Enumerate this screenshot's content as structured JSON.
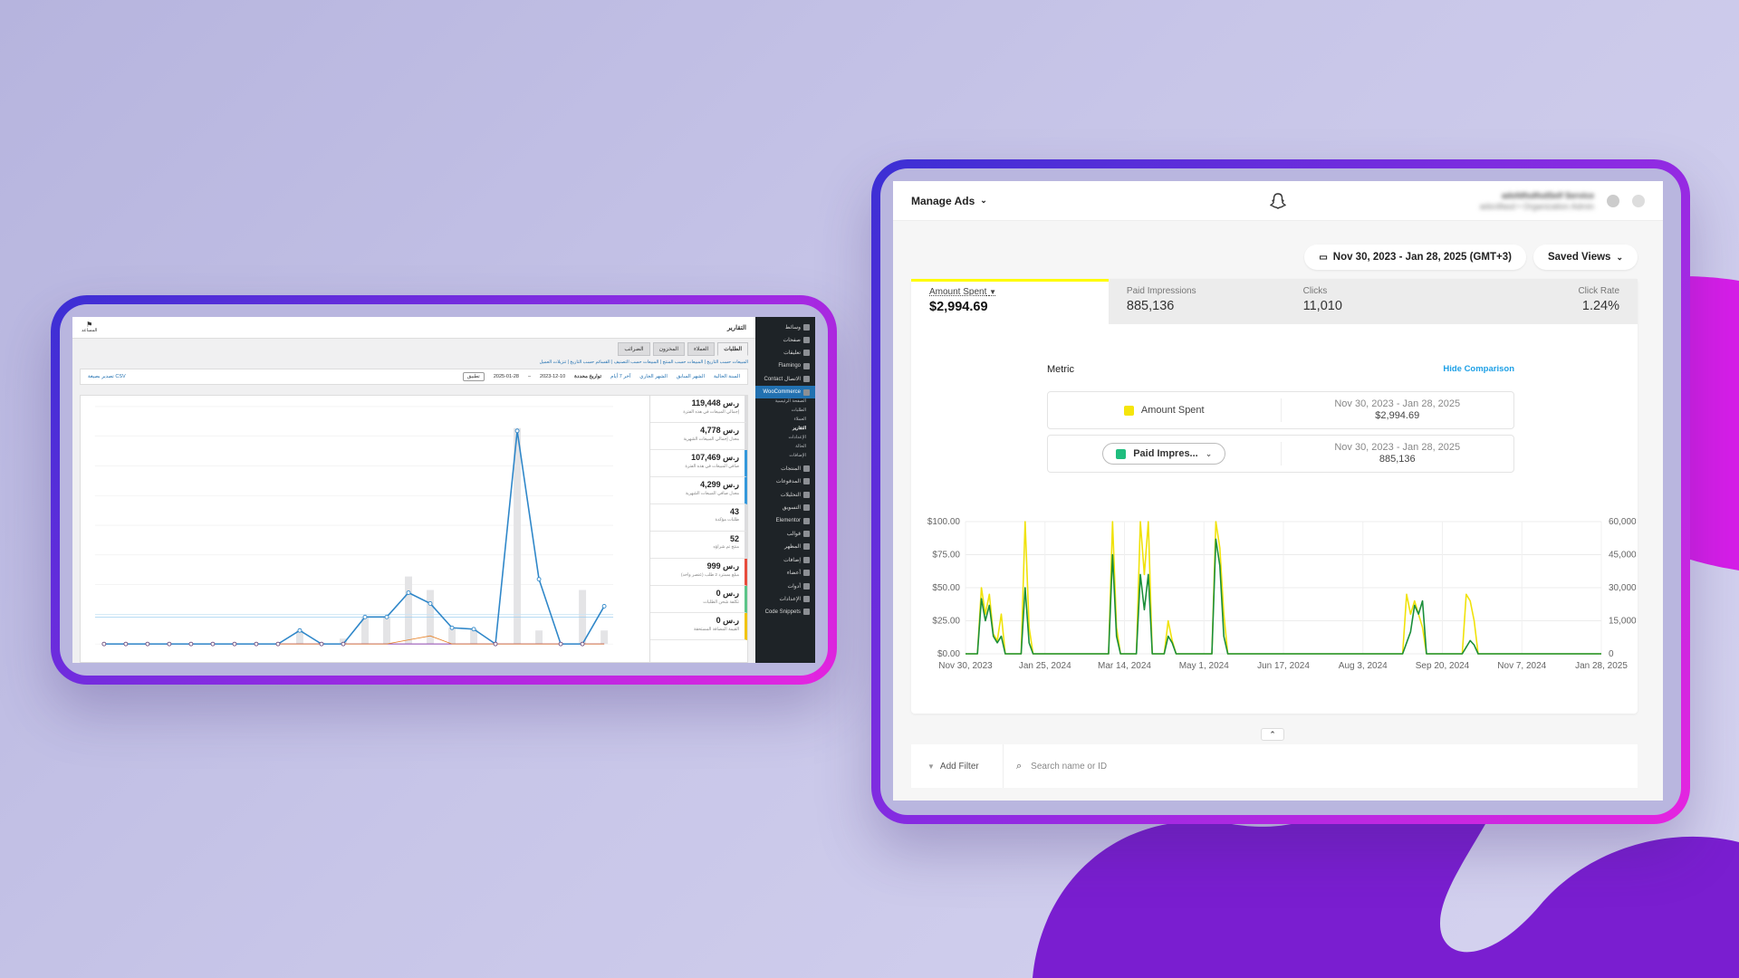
{
  "woocommerce": {
    "header": {
      "title": "التقارير",
      "logo_text": "المساعد"
    },
    "tabs": [
      "الطلبات",
      "العملاء",
      "المخزون",
      "الضرائب"
    ],
    "subnav": "المبيعات حسب التاريخ | المبيعات حسب المنتج | المبيعات حسب التصنيف | القسائم حسب التاريخ | تنزيلات العميل",
    "ranges": [
      "السنة الحالية",
      "الشهر السابق",
      "الشهر الجاري",
      "آخر 7 أيام",
      "تواريخ محددة"
    ],
    "date_from": "2023-12-10",
    "date_to": "2025-01-28",
    "apply": "تطبيق",
    "export_csv": "تصدير بصيغة CSV",
    "sidebar": [
      {
        "label": "وسائط"
      },
      {
        "label": "صفحات"
      },
      {
        "label": "تعليقات"
      },
      {
        "label": "Flamingo"
      },
      {
        "label": "Contact الاتصال"
      },
      {
        "label": "WooCommerce",
        "active": true
      }
    ],
    "sidebar_sub": [
      "الصفحة الرئيسية",
      "الطلبات",
      "العملاء",
      "التقارير",
      "الإعدادات",
      "الحالة",
      "الإضافات"
    ],
    "sidebar_more": [
      {
        "label": "المنتجات"
      },
      {
        "label": "المدفوعات"
      },
      {
        "label": "التحليلات"
      },
      {
        "label": "التسويق"
      },
      {
        "label": "Elementor"
      },
      {
        "label": "قوالب"
      },
      {
        "label": "المظهر"
      },
      {
        "label": "إضافات"
      },
      {
        "label": "أعضاء"
      },
      {
        "label": "أدوات"
      },
      {
        "label": "الإعدادات"
      },
      {
        "label": "Code Snippets"
      }
    ],
    "stats": [
      {
        "value": "119,448 ر.س",
        "label": "إجمالي المبيعات في هذه الفترة",
        "color": "#dcdcde"
      },
      {
        "value": "4,778 ر.س",
        "label": "معدل إجمالي المبيعات الشهرية",
        "color": "#dcdcde"
      },
      {
        "value": "107,469 ر.س",
        "label": "صافي المبيعات في هذه الفترة",
        "color": "#3498db"
      },
      {
        "value": "4,299 ر.س",
        "label": "معدل صافي المبيعات الشهرية",
        "color": "#3498db"
      },
      {
        "value": "43",
        "label": "طلبات مؤكدة",
        "color": "#dcdcde"
      },
      {
        "value": "52",
        "label": "منتج تم شراؤه",
        "color": "#dcdcde"
      },
      {
        "value": "999 ر.س",
        "label": "مبلغ مسترد 2 طلب (عنصر واحد)",
        "color": "#e74c3c"
      },
      {
        "value": "0 ر.س",
        "label": "تكلفة شحن الطلبات",
        "color": "#5cc488"
      },
      {
        "value": "0 ر.س",
        "label": "القيمة المضافة المستحقة",
        "color": "#f1c40f"
      }
    ],
    "chart_data": {
      "type": "line",
      "title": "",
      "series": [
        {
          "values": [
            0,
            0,
            0,
            0,
            0,
            0,
            0,
            0,
            0,
            1,
            0,
            0,
            0,
            0,
            2,
            2,
            0,
            2,
            1,
            0,
            0,
            4,
            0,
            0,
            0,
            1,
            0,
            0,
            0,
            0,
            2,
            0,
            0,
            5,
            0,
            0,
            1,
            0,
            0,
            0,
            1,
            0,
            0,
            1,
            0,
            0,
            0,
            0,
            1,
            0
          ]
        },
        {
          "values": [
            0,
            0,
            0,
            0,
            0,
            0,
            0,
            0,
            0,
            0,
            0,
            0,
            0,
            0,
            0,
            0,
            0,
            0,
            0,
            0,
            0,
            0,
            0,
            0,
            0,
            0,
            0,
            0,
            0,
            0,
            0,
            0,
            0,
            0,
            0,
            0,
            0,
            0,
            0,
            0,
            0,
            0,
            0,
            0,
            0,
            0,
            0,
            0,
            0,
            0
          ]
        }
      ],
      "line_values": [
        0,
        0,
        0,
        0,
        0,
        0,
        0,
        0,
        0,
        5000,
        0,
        0,
        10000,
        10000,
        19000,
        15000,
        6000,
        5500,
        0,
        79000,
        24000,
        0,
        0,
        14000
      ],
      "bar_values": [
        0,
        0,
        0,
        0,
        0,
        0,
        0,
        0,
        0,
        5000,
        500,
        2000,
        10000,
        10000,
        25000,
        20000,
        6000,
        5500,
        0,
        80000,
        5000,
        0,
        20000,
        5000
      ],
      "refund_values": [
        0,
        0,
        0,
        0,
        0,
        0,
        0,
        0,
        0,
        0,
        0,
        0,
        0,
        0,
        500,
        1000,
        0,
        0,
        0,
        0,
        0,
        0,
        0,
        0
      ]
    }
  },
  "snapchat": {
    "header": {
      "manage": "Manage Ads",
      "account_name": "adsfdfsdfsdSelf Service",
      "account_role": "adsrdfasd • Organization Admin"
    },
    "date_range": "Nov 30, 2023 - Jan 28, 2025 (GMT+3)",
    "saved_views": "Saved Views",
    "kpis": [
      {
        "label": "Amount Spent",
        "value": "$2,994.69"
      },
      {
        "label": "Paid Impressions",
        "value": "885,136"
      },
      {
        "label": "Clicks",
        "value": "11,010"
      },
      {
        "label": "Click Rate",
        "value": "1.24%"
      }
    ],
    "metric_label": "Metric",
    "hide_comparison": "Hide Comparison",
    "metrics": [
      {
        "name": "Amount Spent",
        "range": "Nov 30, 2023 - Jan 28, 2025",
        "value": "$2,994.69",
        "color": "#f5e50b"
      },
      {
        "name": "Paid Impres...",
        "range": "Nov 30, 2023 - Jan 28, 2025",
        "value": "885,136",
        "color": "#1fbd7e"
      }
    ],
    "filter": {
      "add_filter": "Add Filter",
      "search_placeholder": "Search name or ID"
    },
    "chart_data": {
      "type": "line",
      "x_ticks": [
        "Nov 30, 2023",
        "Jan 25, 2024",
        "Mar 14, 2024",
        "May 1, 2024",
        "Jun 17, 2024",
        "Aug 3, 2024",
        "Sep 20, 2024",
        "Nov 7, 2024",
        "Jan 28, 2025"
      ],
      "y_left_ticks": [
        "$100.00",
        "$75.00",
        "$50.00",
        "$25.00",
        "$0.00"
      ],
      "y_right_ticks": [
        "60,000",
        "45,000",
        "30,000",
        "15,000",
        "0"
      ],
      "y_left_lim": [
        0,
        100
      ],
      "y_right_lim": [
        0,
        60000
      ],
      "series": [
        {
          "color": "#f0e20a",
          "points": [
            [
              0,
              0
            ],
            [
              3,
              0
            ],
            [
              4,
              50
            ],
            [
              5,
              30
            ],
            [
              6,
              45
            ],
            [
              7,
              15
            ],
            [
              8,
              10
            ],
            [
              9,
              30
            ],
            [
              10,
              0
            ],
            [
              14,
              0
            ],
            [
              15,
              100
            ],
            [
              16,
              20
            ],
            [
              17,
              0
            ],
            [
              35,
              0
            ],
            [
              36,
              0
            ],
            [
              37,
              100
            ],
            [
              38,
              20
            ],
            [
              39,
              0
            ],
            [
              43,
              0
            ],
            [
              44,
              100
            ],
            [
              45,
              60
            ],
            [
              46,
              100
            ],
            [
              47,
              0
            ],
            [
              50,
              0
            ],
            [
              51,
              25
            ],
            [
              52,
              10
            ],
            [
              53,
              0
            ],
            [
              61,
              0
            ],
            [
              62,
              0
            ],
            [
              63,
              100
            ],
            [
              64,
              80
            ],
            [
              65,
              30
            ],
            [
              66,
              0
            ],
            [
              110,
              0
            ],
            [
              111,
              45
            ],
            [
              112,
              30
            ],
            [
              113,
              40
            ],
            [
              114,
              30
            ],
            [
              115,
              20
            ],
            [
              116,
              0
            ],
            [
              125,
              0
            ],
            [
              126,
              45
            ],
            [
              127,
              40
            ],
            [
              128,
              25
            ],
            [
              129,
              0
            ],
            [
              160,
              0
            ]
          ]
        },
        {
          "color": "#1b8f3a",
          "axis": "right",
          "points": [
            [
              0,
              0
            ],
            [
              3,
              0
            ],
            [
              4,
              25000
            ],
            [
              5,
              15000
            ],
            [
              6,
              22000
            ],
            [
              7,
              8000
            ],
            [
              8,
              5000
            ],
            [
              9,
              8000
            ],
            [
              10,
              0
            ],
            [
              14,
              0
            ],
            [
              15,
              30000
            ],
            [
              16,
              5000
            ],
            [
              17,
              0
            ],
            [
              36,
              0
            ],
            [
              37,
              45000
            ],
            [
              38,
              8000
            ],
            [
              39,
              0
            ],
            [
              43,
              0
            ],
            [
              44,
              36000
            ],
            [
              45,
              20000
            ],
            [
              46,
              36000
            ],
            [
              47,
              0
            ],
            [
              50,
              0
            ],
            [
              51,
              8000
            ],
            [
              52,
              5000
            ],
            [
              53,
              0
            ],
            [
              62,
              0
            ],
            [
              63,
              52000
            ],
            [
              64,
              40000
            ],
            [
              65,
              8000
            ],
            [
              66,
              0
            ],
            [
              110,
              0
            ],
            [
              111,
              5000
            ],
            [
              112,
              10000
            ],
            [
              113,
              22000
            ],
            [
              114,
              18000
            ],
            [
              115,
              24000
            ],
            [
              116,
              0
            ],
            [
              125,
              0
            ],
            [
              126,
              3000
            ],
            [
              127,
              6000
            ],
            [
              128,
              4000
            ],
            [
              129,
              0
            ],
            [
              160,
              0
            ]
          ]
        }
      ]
    }
  }
}
